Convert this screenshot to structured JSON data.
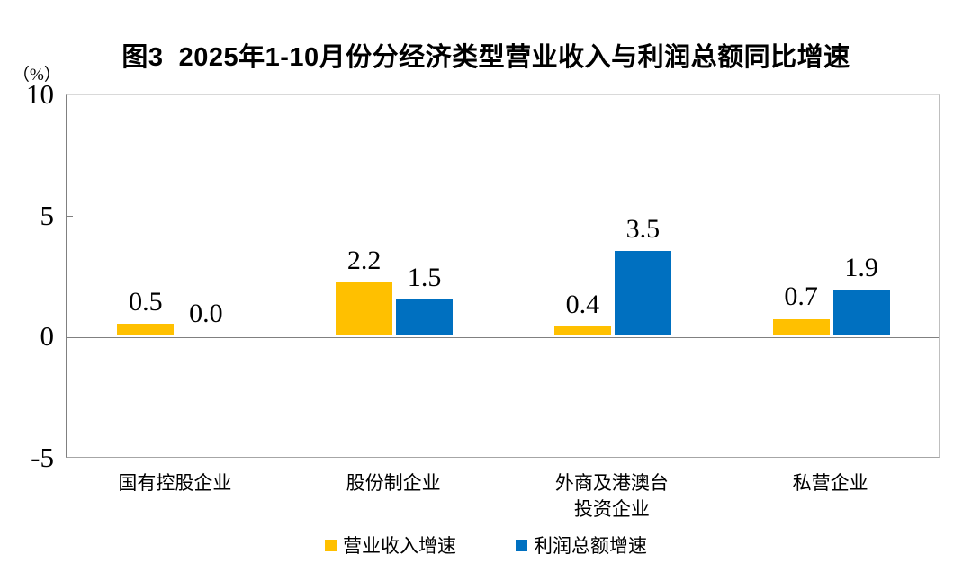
{
  "title": "图3  2025年1-10月份分经济类型营业收入与利润总额同比增速",
  "axis": {
    "unit_label": "（%）"
  },
  "legend": {
    "items": [
      {
        "label": "营业收入增速",
        "color": "#FFC000"
      },
      {
        "label": "利润总额增速",
        "color": "#0070C0"
      }
    ]
  },
  "chart_data": {
    "type": "bar",
    "title": "图3  2025年1-10月份分经济类型营业收入与利润总额同比增速",
    "categories": [
      "国有控股企业",
      "股份制企业",
      "外商及港澳台\n投资企业",
      "私营企业"
    ],
    "series": [
      {
        "name": "营业收入增速",
        "color": "#FFC000",
        "values": [
          0.5,
          2.2,
          0.4,
          0.7
        ]
      },
      {
        "name": "利润总额增速",
        "color": "#0070C0",
        "values": [
          0.0,
          1.5,
          3.5,
          1.9
        ]
      }
    ],
    "xlabel": "",
    "ylabel": "（%）",
    "ylim": [
      -5,
      10
    ],
    "yticks": [
      10,
      5,
      0,
      -5
    ],
    "grid": false,
    "legend_position": "bottom",
    "value_labels": true
  }
}
